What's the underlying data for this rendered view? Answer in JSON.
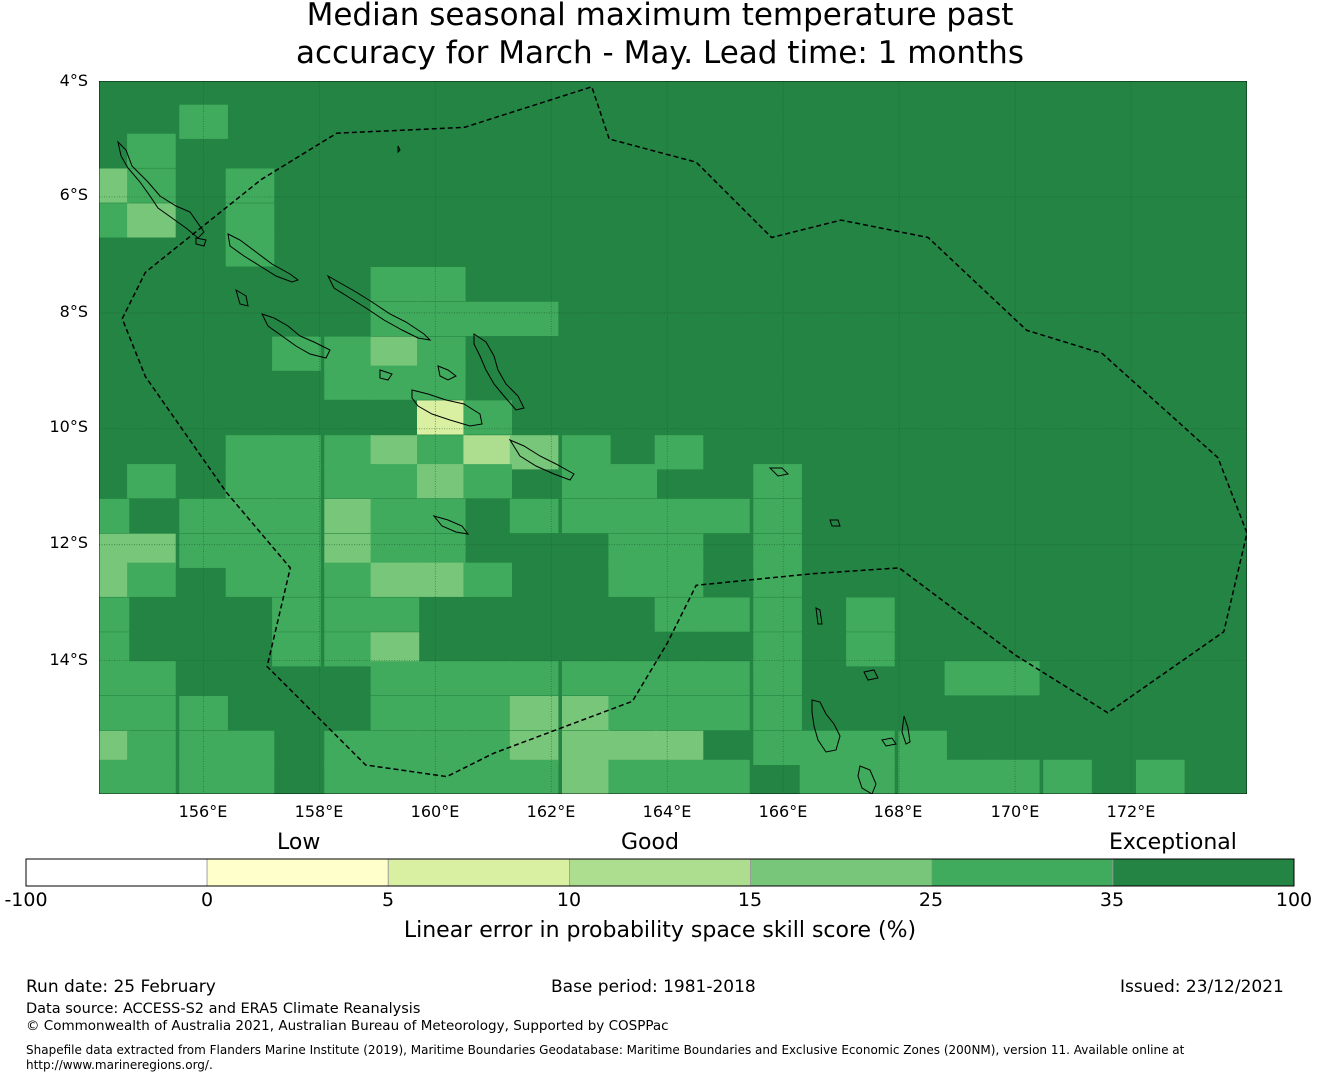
{
  "title_line1": "Median seasonal maximum temperature past",
  "title_line2": "accuracy for March - May. Lead time: 1 months",
  "map": {
    "lat_labels": [
      "4°S",
      "6°S",
      "8°S",
      "10°S",
      "12°S",
      "14°S"
    ],
    "lon_labels": [
      "156°E",
      "158°E",
      "160°E",
      "162°E",
      "164°E",
      "166°E",
      "168°E",
      "170°E",
      "172°E"
    ],
    "grid_extent": {
      "lon_min": 154.2,
      "lon_max": 174.0,
      "lat_north": -4.0,
      "lat_south": -16.3
    },
    "cell_size_deg": 0.83,
    "background_category": 6,
    "cells": [
      {
        "lon": 156.0,
        "lat": -4.7,
        "cat": 5
      },
      {
        "lon": 155.1,
        "lat": -5.2,
        "cat": 5
      },
      {
        "lon": 154.3,
        "lat": -5.8,
        "cat": 4
      },
      {
        "lon": 155.1,
        "lat": -5.8,
        "cat": 5
      },
      {
        "lon": 154.3,
        "lat": -6.4,
        "cat": 5
      },
      {
        "lon": 155.1,
        "lat": -6.4,
        "cat": 4
      },
      {
        "lon": 156.8,
        "lat": -5.8,
        "cat": 5
      },
      {
        "lon": 156.8,
        "lat": -6.4,
        "cat": 5
      },
      {
        "lon": 156.8,
        "lat": -6.9,
        "cat": 5
      },
      {
        "lon": 159.3,
        "lat": -7.5,
        "cat": 5
      },
      {
        "lon": 160.1,
        "lat": -7.5,
        "cat": 5
      },
      {
        "lon": 159.3,
        "lat": -8.1,
        "cat": 5
      },
      {
        "lon": 160.1,
        "lat": -8.1,
        "cat": 5
      },
      {
        "lon": 160.9,
        "lat": -8.1,
        "cat": 5
      },
      {
        "lon": 161.7,
        "lat": -8.1,
        "cat": 5
      },
      {
        "lon": 158.5,
        "lat": -8.7,
        "cat": 5
      },
      {
        "lon": 159.3,
        "lat": -8.7,
        "cat": 4
      },
      {
        "lon": 160.1,
        "lat": -8.7,
        "cat": 5
      },
      {
        "lon": 157.6,
        "lat": -8.7,
        "cat": 5
      },
      {
        "lon": 158.5,
        "lat": -9.2,
        "cat": 5
      },
      {
        "lon": 159.3,
        "lat": -9.2,
        "cat": 5
      },
      {
        "lon": 160.1,
        "lat": -9.2,
        "cat": 5
      },
      {
        "lon": 160.1,
        "lat": -9.8,
        "cat": 2
      },
      {
        "lon": 160.9,
        "lat": -9.8,
        "cat": 5
      },
      {
        "lon": 156.8,
        "lat": -10.4,
        "cat": 5
      },
      {
        "lon": 157.6,
        "lat": -10.4,
        "cat": 5
      },
      {
        "lon": 158.5,
        "lat": -10.4,
        "cat": 5
      },
      {
        "lon": 159.3,
        "lat": -10.4,
        "cat": 4
      },
      {
        "lon": 160.1,
        "lat": -10.4,
        "cat": 5
      },
      {
        "lon": 160.9,
        "lat": -10.4,
        "cat": 3
      },
      {
        "lon": 161.7,
        "lat": -10.4,
        "cat": 4
      },
      {
        "lon": 162.6,
        "lat": -10.4,
        "cat": 5
      },
      {
        "lon": 164.2,
        "lat": -10.4,
        "cat": 5
      },
      {
        "lon": 155.1,
        "lat": -10.9,
        "cat": 5
      },
      {
        "lon": 156.8,
        "lat": -10.9,
        "cat": 5
      },
      {
        "lon": 157.6,
        "lat": -10.9,
        "cat": 5
      },
      {
        "lon": 158.5,
        "lat": -10.9,
        "cat": 5
      },
      {
        "lon": 159.3,
        "lat": -10.9,
        "cat": 5
      },
      {
        "lon": 160.1,
        "lat": -10.9,
        "cat": 4
      },
      {
        "lon": 160.9,
        "lat": -10.9,
        "cat": 5
      },
      {
        "lon": 162.6,
        "lat": -10.9,
        "cat": 5
      },
      {
        "lon": 163.4,
        "lat": -10.9,
        "cat": 5
      },
      {
        "lon": 165.9,
        "lat": -10.9,
        "cat": 5
      },
      {
        "lon": 154.3,
        "lat": -11.5,
        "cat": 5
      },
      {
        "lon": 156.0,
        "lat": -11.5,
        "cat": 5
      },
      {
        "lon": 156.8,
        "lat": -11.5,
        "cat": 5
      },
      {
        "lon": 157.6,
        "lat": -11.5,
        "cat": 5
      },
      {
        "lon": 158.5,
        "lat": -11.5,
        "cat": 4
      },
      {
        "lon": 159.3,
        "lat": -11.5,
        "cat": 5
      },
      {
        "lon": 160.1,
        "lat": -11.5,
        "cat": 5
      },
      {
        "lon": 161.7,
        "lat": -11.5,
        "cat": 5
      },
      {
        "lon": 162.6,
        "lat": -11.5,
        "cat": 5
      },
      {
        "lon": 163.4,
        "lat": -11.5,
        "cat": 5
      },
      {
        "lon": 164.2,
        "lat": -11.5,
        "cat": 5
      },
      {
        "lon": 165.0,
        "lat": -11.5,
        "cat": 5
      },
      {
        "lon": 165.9,
        "lat": -11.5,
        "cat": 5
      },
      {
        "lon": 154.3,
        "lat": -12.1,
        "cat": 4
      },
      {
        "lon": 155.1,
        "lat": -12.1,
        "cat": 4
      },
      {
        "lon": 156.0,
        "lat": -12.1,
        "cat": 5
      },
      {
        "lon": 156.8,
        "lat": -12.1,
        "cat": 5
      },
      {
        "lon": 157.6,
        "lat": -12.1,
        "cat": 5
      },
      {
        "lon": 158.5,
        "lat": -12.1,
        "cat": 4
      },
      {
        "lon": 159.3,
        "lat": -12.1,
        "cat": 5
      },
      {
        "lon": 160.1,
        "lat": -12.1,
        "cat": 5
      },
      {
        "lon": 163.4,
        "lat": -12.1,
        "cat": 5
      },
      {
        "lon": 164.2,
        "lat": -12.1,
        "cat": 5
      },
      {
        "lon": 165.9,
        "lat": -12.1,
        "cat": 5
      },
      {
        "lon": 154.3,
        "lat": -12.6,
        "cat": 4
      },
      {
        "lon": 155.1,
        "lat": -12.6,
        "cat": 5
      },
      {
        "lon": 156.8,
        "lat": -12.6,
        "cat": 5
      },
      {
        "lon": 157.6,
        "lat": -12.6,
        "cat": 5
      },
      {
        "lon": 158.5,
        "lat": -12.6,
        "cat": 5
      },
      {
        "lon": 159.3,
        "lat": -12.6,
        "cat": 4
      },
      {
        "lon": 160.1,
        "lat": -12.6,
        "cat": 4
      },
      {
        "lon": 160.9,
        "lat": -12.6,
        "cat": 5
      },
      {
        "lon": 163.4,
        "lat": -12.6,
        "cat": 5
      },
      {
        "lon": 164.2,
        "lat": -12.6,
        "cat": 5
      },
      {
        "lon": 165.9,
        "lat": -12.6,
        "cat": 5
      },
      {
        "lon": 154.3,
        "lat": -13.2,
        "cat": 5
      },
      {
        "lon": 157.6,
        "lat": -13.2,
        "cat": 5
      },
      {
        "lon": 158.5,
        "lat": -13.2,
        "cat": 5
      },
      {
        "lon": 159.3,
        "lat": -13.2,
        "cat": 5
      },
      {
        "lon": 164.2,
        "lat": -13.2,
        "cat": 5
      },
      {
        "lon": 165.0,
        "lat": -13.2,
        "cat": 5
      },
      {
        "lon": 165.9,
        "lat": -13.2,
        "cat": 5
      },
      {
        "lon": 167.5,
        "lat": -13.2,
        "cat": 5
      },
      {
        "lon": 154.3,
        "lat": -13.8,
        "cat": 5
      },
      {
        "lon": 157.6,
        "lat": -13.8,
        "cat": 5
      },
      {
        "lon": 158.5,
        "lat": -13.8,
        "cat": 5
      },
      {
        "lon": 159.3,
        "lat": -13.8,
        "cat": 4
      },
      {
        "lon": 165.9,
        "lat": -13.8,
        "cat": 5
      },
      {
        "lon": 167.5,
        "lat": -13.8,
        "cat": 5
      },
      {
        "lon": 154.3,
        "lat": -14.3,
        "cat": 5
      },
      {
        "lon": 155.1,
        "lat": -14.3,
        "cat": 5
      },
      {
        "lon": 159.3,
        "lat": -14.3,
        "cat": 5
      },
      {
        "lon": 160.1,
        "lat": -14.3,
        "cat": 5
      },
      {
        "lon": 160.9,
        "lat": -14.3,
        "cat": 5
      },
      {
        "lon": 161.7,
        "lat": -14.3,
        "cat": 5
      },
      {
        "lon": 162.6,
        "lat": -14.3,
        "cat": 5
      },
      {
        "lon": 163.4,
        "lat": -14.3,
        "cat": 5
      },
      {
        "lon": 164.2,
        "lat": -14.3,
        "cat": 5
      },
      {
        "lon": 165.0,
        "lat": -14.3,
        "cat": 5
      },
      {
        "lon": 165.9,
        "lat": -14.3,
        "cat": 5
      },
      {
        "lon": 169.2,
        "lat": -14.3,
        "cat": 5
      },
      {
        "lon": 170.0,
        "lat": -14.3,
        "cat": 5
      },
      {
        "lon": 154.3,
        "lat": -14.9,
        "cat": 5
      },
      {
        "lon": 155.1,
        "lat": -14.9,
        "cat": 5
      },
      {
        "lon": 156.0,
        "lat": -14.9,
        "cat": 5
      },
      {
        "lon": 159.3,
        "lat": -14.9,
        "cat": 5
      },
      {
        "lon": 160.1,
        "lat": -14.9,
        "cat": 5
      },
      {
        "lon": 160.9,
        "lat": -14.9,
        "cat": 5
      },
      {
        "lon": 161.7,
        "lat": -14.9,
        "cat": 4
      },
      {
        "lon": 162.6,
        "lat": -14.9,
        "cat": 4
      },
      {
        "lon": 163.4,
        "lat": -14.9,
        "cat": 5
      },
      {
        "lon": 164.2,
        "lat": -14.9,
        "cat": 5
      },
      {
        "lon": 165.0,
        "lat": -14.9,
        "cat": 5
      },
      {
        "lon": 165.9,
        "lat": -14.9,
        "cat": 5
      },
      {
        "lon": 154.3,
        "lat": -15.5,
        "cat": 4
      },
      {
        "lon": 155.1,
        "lat": -15.5,
        "cat": 5
      },
      {
        "lon": 156.0,
        "lat": -15.5,
        "cat": 5
      },
      {
        "lon": 156.8,
        "lat": -15.5,
        "cat": 5
      },
      {
        "lon": 158.5,
        "lat": -15.5,
        "cat": 5
      },
      {
        "lon": 159.3,
        "lat": -15.5,
        "cat": 5
      },
      {
        "lon": 160.1,
        "lat": -15.5,
        "cat": 5
      },
      {
        "lon": 160.9,
        "lat": -15.5,
        "cat": 5
      },
      {
        "lon": 161.7,
        "lat": -15.5,
        "cat": 4
      },
      {
        "lon": 162.6,
        "lat": -15.5,
        "cat": 4
      },
      {
        "lon": 163.4,
        "lat": -15.5,
        "cat": 4
      },
      {
        "lon": 164.2,
        "lat": -15.5,
        "cat": 4
      },
      {
        "lon": 165.9,
        "lat": -15.5,
        "cat": 5
      },
      {
        "lon": 166.7,
        "lat": -15.5,
        "cat": 5
      },
      {
        "lon": 167.5,
        "lat": -15.5,
        "cat": 5
      },
      {
        "lon": 168.4,
        "lat": -15.5,
        "cat": 5
      },
      {
        "lon": 154.3,
        "lat": -16.0,
        "cat": 5
      },
      {
        "lon": 155.1,
        "lat": -16.0,
        "cat": 5
      },
      {
        "lon": 156.0,
        "lat": -16.0,
        "cat": 5
      },
      {
        "lon": 156.8,
        "lat": -16.0,
        "cat": 5
      },
      {
        "lon": 158.5,
        "lat": -16.0,
        "cat": 5
      },
      {
        "lon": 159.3,
        "lat": -16.0,
        "cat": 5
      },
      {
        "lon": 160.1,
        "lat": -16.0,
        "cat": 5
      },
      {
        "lon": 160.9,
        "lat": -16.0,
        "cat": 5
      },
      {
        "lon": 161.7,
        "lat": -16.0,
        "cat": 5
      },
      {
        "lon": 162.6,
        "lat": -16.0,
        "cat": 4
      },
      {
        "lon": 163.4,
        "lat": -16.0,
        "cat": 5
      },
      {
        "lon": 164.2,
        "lat": -16.0,
        "cat": 5
      },
      {
        "lon": 165.0,
        "lat": -16.0,
        "cat": 5
      },
      {
        "lon": 166.7,
        "lat": -16.0,
        "cat": 5
      },
      {
        "lon": 167.5,
        "lat": -16.0,
        "cat": 5
      },
      {
        "lon": 168.4,
        "lat": -16.0,
        "cat": 5
      },
      {
        "lon": 169.2,
        "lat": -16.0,
        "cat": 5
      },
      {
        "lon": 170.0,
        "lat": -16.0,
        "cat": 5
      },
      {
        "lon": 170.9,
        "lat": -16.0,
        "cat": 5
      },
      {
        "lon": 172.5,
        "lat": -16.0,
        "cat": 5
      }
    ],
    "eez_boundary": [
      [
        154.6,
        -8.1
      ],
      [
        155.0,
        -7.3
      ],
      [
        157.0,
        -5.7
      ],
      [
        158.3,
        -4.9
      ],
      [
        160.5,
        -4.8
      ],
      [
        162.7,
        -4.1
      ],
      [
        163.0,
        -5.0
      ],
      [
        164.5,
        -5.4
      ],
      [
        165.8,
        -6.7
      ],
      [
        167.0,
        -6.4
      ],
      [
        168.5,
        -6.7
      ],
      [
        170.2,
        -8.3
      ],
      [
        171.5,
        -8.7
      ],
      [
        173.5,
        -10.5
      ],
      [
        174.0,
        -11.8
      ],
      [
        173.6,
        -13.5
      ],
      [
        171.6,
        -14.9
      ],
      [
        170.0,
        -13.9
      ],
      [
        168.0,
        -12.4
      ],
      [
        166.5,
        -12.5
      ],
      [
        164.5,
        -12.7
      ],
      [
        164.0,
        -13.7
      ],
      [
        163.4,
        -14.7
      ],
      [
        161.0,
        -15.6
      ],
      [
        160.2,
        -16.0
      ],
      [
        158.8,
        -15.8
      ],
      [
        157.1,
        -14.1
      ],
      [
        157.5,
        -12.4
      ],
      [
        156.4,
        -11.1
      ],
      [
        155.0,
        -9.1
      ],
      [
        154.6,
        -8.1
      ]
    ]
  },
  "colorbar": {
    "category_titles": {
      "low": "Low",
      "good": "Good",
      "exceptional": "Exceptional"
    },
    "ticks": [
      "-100",
      "0",
      "5",
      "10",
      "15",
      "25",
      "35",
      "100"
    ],
    "colors": [
      "#ffffff",
      "#ffffcc",
      "#d9f0a3",
      "#addd8e",
      "#78c679",
      "#41ab5d",
      "#238443"
    ],
    "label": "Linear error in probability space skill score (%)"
  },
  "footer": {
    "run_date": "Run date: 25 February",
    "base_period": "Base period: 1981-2018",
    "issued": "Issued: 23/12/2021",
    "data_source": "Data source: ACCESS-S2 and ERA5 Climate Reanalysis",
    "copyright": "© Commonwealth of Australia 2021, Australian Bureau of Meteorology, Supported by COSPPac",
    "shapefile_line1": "Shapefile data extracted from Flanders Marine Institute (2019), Maritime Boundaries Geodatabase: Maritime Boundaries and Exclusive Economic Zones (200NM), version 11. Available online at",
    "shapefile_line2": "http://www.marineregions.org/."
  }
}
